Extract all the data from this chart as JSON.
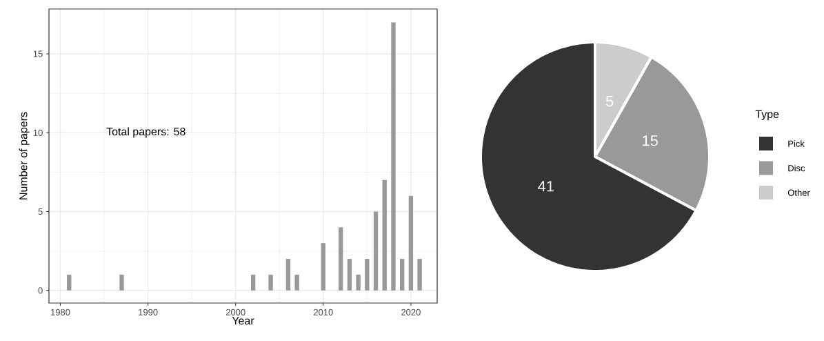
{
  "chart_data": [
    {
      "type": "bar",
      "x": [
        1981,
        1987,
        2002,
        2004,
        2006,
        2007,
        2010,
        2012,
        2013,
        2014,
        2015,
        2016,
        2017,
        2018,
        2019,
        2020,
        2021
      ],
      "values": [
        1,
        1,
        1,
        1,
        2,
        1,
        3,
        4,
        2,
        1,
        2,
        5,
        7,
        17,
        2,
        6,
        2
      ],
      "color": "#999999",
      "xlabel": "Year",
      "ylabel": "Number of papers",
      "xlim": [
        1978.7,
        2023
      ],
      "ylim": [
        -0.8,
        17.85
      ],
      "xticks": [
        1980,
        1990,
        2000,
        2010,
        2020
      ],
      "yticks": [
        0,
        5,
        10,
        15
      ],
      "grid": true,
      "annotations": [
        "Total papers: 58"
      ]
    },
    {
      "type": "pie",
      "categories": [
        "Pick",
        "Disc",
        "Other"
      ],
      "values": [
        41,
        15,
        5
      ],
      "colors": [
        "#333333",
        "#999999",
        "#cccccc"
      ],
      "data_labels": true,
      "legend": "right",
      "legend_title": "Type"
    }
  ]
}
